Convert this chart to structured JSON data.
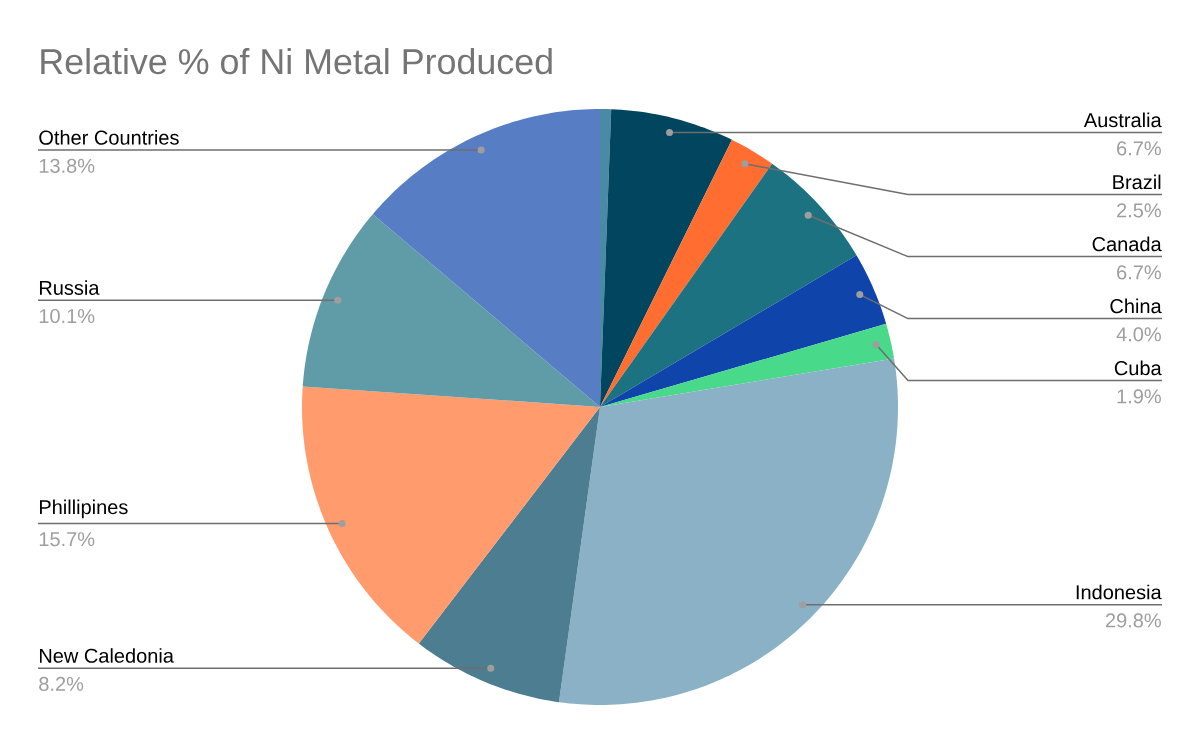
{
  "chart_data": {
    "type": "pie",
    "title": "Relative % of Ni Metal Produced",
    "categories": [
      null,
      "Australia",
      "Brazil",
      "Canada",
      "China",
      "Cuba",
      "Indonesia",
      "New Caledonia",
      "Phillipines",
      "Russia",
      "Other Countries"
    ],
    "values": [
      0.6,
      6.7,
      2.5,
      6.7,
      4.0,
      1.9,
      29.8,
      8.2,
      15.7,
      10.1,
      13.8
    ],
    "value_labels": [
      null,
      "6.7%",
      "2.5%",
      "6.7%",
      "4.0%",
      "1.9%",
      "29.8%",
      "8.2%",
      "15.7%",
      "10.1%",
      "13.8%"
    ],
    "colors": [
      "#4a8ba3",
      "#01455f",
      "#ff6d31",
      "#1d7282",
      "#0f44aa",
      "#48d98a",
      "#8ab1c6",
      "#4d7d91",
      "#ff9b6c",
      "#609ca8",
      "#577ec4"
    ]
  }
}
